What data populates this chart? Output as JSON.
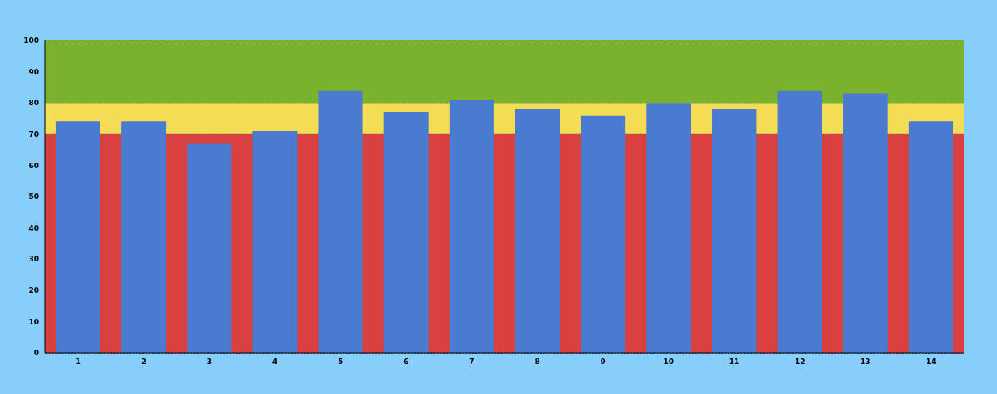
{
  "chart_data": {
    "type": "bar",
    "categories": [
      "1",
      "2",
      "3",
      "4",
      "5",
      "6",
      "7",
      "8",
      "9",
      "10",
      "11",
      "12",
      "13",
      "14"
    ],
    "values": [
      74,
      74,
      67,
      71,
      84,
      77,
      81,
      78,
      76,
      80,
      78,
      84,
      83,
      74
    ],
    "color": "#4a7bd0",
    "ylim": [
      0,
      100
    ],
    "yticks": [
      0,
      10,
      20,
      30,
      40,
      50,
      60,
      70,
      80,
      90,
      100
    ],
    "grid": "y",
    "bands": [
      {
        "axis": "y",
        "from": 0,
        "to": 70,
        "color": "#d94040"
      },
      {
        "axis": "y",
        "from": 70,
        "to": 80,
        "color": "#f2dd55"
      },
      {
        "axis": "y",
        "from": 80,
        "to": 100,
        "color": "#7ab22e"
      }
    ]
  }
}
